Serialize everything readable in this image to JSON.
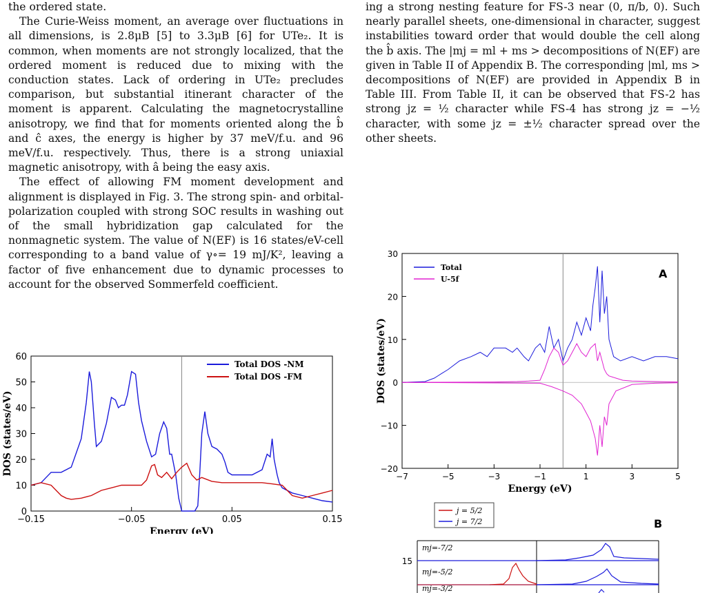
{
  "left_column": {
    "paragraphs": [
      "the ordered state.",
      "The Curie-Weiss moment, an average over fluctuations in all dimensions, is 2.8μB [5] to 3.3μB [6] for UTe₂. It is common, when moments are not strongly localized, that the ordered moment is reduced due to mixing with the conduction states. Lack of ordering in UTe₂ precludes comparison, but substantial itinerant character of the moment is apparent. Calculating the magnetocrystalline anisotropy, we find that for moments oriented along the b̂ and ĉ axes, the energy is higher by 37 meV/f.u. and 96 meV/f.u. respectively. Thus, there is a strong uniaxial magnetic anisotropy, with â being the easy axis.",
      "The effect of allowing FM moment development and alignment is displayed in Fig. 3. The strong spin- and orbital-polarization coupled with strong SOC results in washing out of the small hybridization gap calculated for the nonmagnetic system. The value of N(EF) is 16 states/eV-cell corresponding to a band value of γ∘= 19 mJ/K², leaving a factor of five enhancement due to dynamic processes to account for the observed Sommerfeld coefficient."
    ]
  },
  "right_column": {
    "paragraphs": [
      "ing a strong nesting feature for FS-3 near (0, π/b, 0). Such nearly parallel sheets, one-dimensional in character, suggest instabilities toward order that would double the cell along the b̂ axis. The |mj = ml + ms > decompositions of N(EF) are given in Table II of Appendix B. The corresponding |ml, ms > decompositions of N(EF) are provided in Appendix B in Table III. From Table II, it can be observed that FS-2 has strong jz = ½ character while FS-4 has strong jz = −½ character, with some jz = ±½ character spread over the other sheets."
    ]
  },
  "chart_data": [
    {
      "type": "line",
      "xlabel": "Energy  (eV)",
      "ylabel": "DOS (states/eV)",
      "xlim": [
        -0.15,
        0.15
      ],
      "ylim": [
        0,
        60
      ],
      "xticks": [
        "-0.15",
        "-0.05",
        "0.05",
        "0.15"
      ],
      "yticks": [
        "0",
        "10",
        "20",
        "30",
        "40",
        "50",
        "60"
      ],
      "legend_position": "top-right",
      "series": [
        {
          "name": "Total DOS -NM",
          "color": "#1a1adb",
          "x": [
            -0.15,
            -0.14,
            -0.135,
            -0.13,
            -0.12,
            -0.11,
            -0.1,
            -0.095,
            -0.092,
            -0.09,
            -0.087,
            -0.085,
            -0.08,
            -0.075,
            -0.07,
            -0.066,
            -0.063,
            -0.06,
            -0.057,
            -0.054,
            -0.05,
            -0.046,
            -0.043,
            -0.04,
            -0.035,
            -0.03,
            -0.026,
            -0.022,
            -0.018,
            -0.015,
            -0.012,
            -0.01,
            -0.006,
            -0.003,
            0.0,
            0.005,
            0.01,
            0.013,
            0.016,
            0.018,
            0.02,
            0.023,
            0.026,
            0.03,
            0.035,
            0.04,
            0.043,
            0.046,
            0.05,
            0.06,
            0.07,
            0.075,
            0.08,
            0.085,
            0.088,
            0.09,
            0.092,
            0.094,
            0.095,
            0.097,
            0.1,
            0.11,
            0.12,
            0.13,
            0.14,
            0.15
          ],
          "y": [
            10,
            11,
            13,
            15,
            15,
            17,
            28,
            42,
            54,
            50,
            34,
            25,
            27,
            34,
            44,
            43,
            40,
            41,
            41,
            45,
            54,
            53,
            42,
            35,
            27,
            21,
            22,
            30,
            34.5,
            32,
            22,
            22,
            14,
            5,
            0,
            0,
            0,
            0,
            2,
            15,
            30,
            38.5,
            30,
            25,
            24,
            22,
            19,
            15,
            14,
            14,
            14,
            15,
            16,
            22,
            21,
            28,
            20,
            16,
            14,
            11,
            9,
            7,
            6,
            5,
            4,
            3.5
          ]
        },
        {
          "name": "Total DOS -FM",
          "color": "#cc1010",
          "x": [
            -0.15,
            -0.14,
            -0.13,
            -0.12,
            -0.115,
            -0.11,
            -0.1,
            -0.09,
            -0.08,
            -0.07,
            -0.06,
            -0.05,
            -0.04,
            -0.035,
            -0.03,
            -0.027,
            -0.024,
            -0.02,
            -0.015,
            -0.01,
            -0.005,
            0.0,
            0.005,
            0.01,
            0.015,
            0.02,
            0.03,
            0.04,
            0.05,
            0.06,
            0.07,
            0.08,
            0.09,
            0.1,
            0.11,
            0.12,
            0.13,
            0.14,
            0.15
          ],
          "y": [
            10,
            11,
            10,
            6,
            5,
            4.5,
            5,
            6,
            8,
            9,
            10,
            10,
            10,
            12,
            17.5,
            18,
            14,
            13,
            15,
            12.5,
            15,
            17,
            18.5,
            14,
            12,
            13,
            11.5,
            11,
            11,
            11,
            11,
            11,
            10.5,
            10,
            6,
            5,
            6,
            7,
            8
          ]
        }
      ]
    },
    {
      "type": "line",
      "xlabel": "Energy  (eV)",
      "ylabel": "DOS (states/eV)",
      "panel_label": "A",
      "xlim": [
        -7,
        5
      ],
      "ylim": [
        -20,
        30
      ],
      "xticks": [
        "-7",
        "-5",
        "-3",
        "-1",
        "1",
        "3",
        "5"
      ],
      "yticks": [
        "-20",
        "-10",
        "0",
        "10",
        "20",
        "30"
      ],
      "legend_position": "top-left",
      "series": [
        {
          "name": "Total",
          "color": "#1a1adb",
          "x": [
            -7,
            -6,
            -5.6,
            -5.3,
            -5,
            -4.5,
            -4,
            -3.6,
            -3.3,
            -3,
            -2.5,
            -2.2,
            -2,
            -1.7,
            -1.5,
            -1.2,
            -1,
            -0.8,
            -0.6,
            -0.4,
            -0.2,
            0,
            0.2,
            0.4,
            0.6,
            0.8,
            1,
            1.2,
            1.3,
            1.4,
            1.5,
            1.6,
            1.7,
            1.8,
            1.9,
            2,
            2.2,
            2.5,
            3,
            3.5,
            4,
            4.5,
            5
          ],
          "y": [
            0,
            0.2,
            1,
            2,
            3,
            5,
            6,
            7,
            6,
            8,
            8,
            7,
            8,
            6,
            5,
            8,
            9,
            7,
            13,
            8,
            10,
            5,
            8,
            10,
            14,
            11,
            15,
            12,
            18,
            22,
            27,
            14,
            26,
            16,
            20,
            10,
            6,
            5,
            6,
            5,
            6,
            6,
            5.5
          ]
        },
        {
          "name": "U-5f",
          "color": "#e020d0",
          "x": [
            -7,
            -3,
            -2,
            -1.5,
            -1,
            -0.8,
            -0.6,
            -0.4,
            -0.2,
            0,
            0.2,
            0.4,
            0.6,
            0.8,
            1,
            1.2,
            1.4,
            1.5,
            1.6,
            1.7,
            1.8,
            1.9,
            2,
            2.3,
            2.6,
            3,
            4,
            5
          ],
          "y": [
            0,
            0.1,
            0.2,
            0.3,
            0.5,
            3,
            6,
            8,
            7,
            4,
            5,
            7,
            9,
            7,
            6,
            8,
            9,
            5,
            7,
            5,
            3,
            2,
            1.5,
            1,
            0.5,
            0.3,
            0.2,
            0.1
          ]
        },
        {
          "name": "U-5f down",
          "color": "#e020d0",
          "x": [
            -7,
            -1,
            -0.5,
            0,
            0.4,
            0.8,
            1,
            1.2,
            1.4,
            1.5,
            1.6,
            1.7,
            1.8,
            1.9,
            2,
            2.3,
            3,
            4,
            5
          ],
          "y": [
            0,
            -0.2,
            -1,
            -2,
            -3,
            -5,
            -7,
            -9,
            -13,
            -17,
            -10,
            -15,
            -8,
            -10,
            -5,
            -2,
            -0.5,
            -0.2,
            -0.1
          ]
        }
      ]
    },
    {
      "type": "line",
      "panel_label": "B",
      "ytick_visible": "15",
      "legend_entries": [
        "j = 5/2",
        "j = 7/2"
      ],
      "legend_colors": [
        "#cc1010",
        "#1a1adb"
      ],
      "row_labels": [
        "mj=-7/2",
        "mj=-5/2",
        "mj=-3/2"
      ]
    }
  ]
}
